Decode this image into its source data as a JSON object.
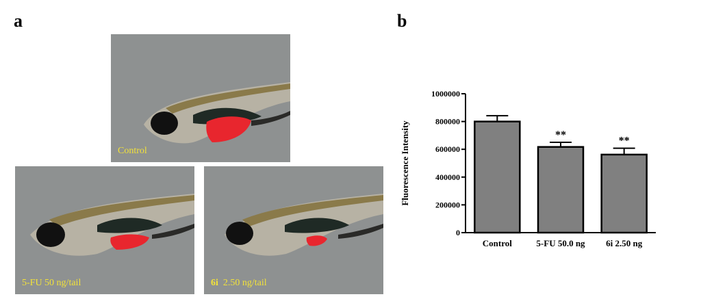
{
  "panels": {
    "a": "a",
    "b": "b"
  },
  "images": {
    "control": {
      "label": "Control"
    },
    "fu": {
      "label": "5-FU  50 ng/tail"
    },
    "sixi": {
      "label_bold": "6i",
      "label_rest": "2.50 ng/tail"
    }
  },
  "chart_data": {
    "type": "bar",
    "ylabel": "Fluorescence Intensity",
    "xlabel": "",
    "categories": [
      "Control",
      "5-FU 50.0 ng",
      "6i 2.50 ng"
    ],
    "values": [
      800000,
      617000,
      562000
    ],
    "errors": [
      42000,
      33000,
      46000
    ],
    "annotations": [
      "",
      "**",
      "**"
    ],
    "ylim": [
      0,
      1000000
    ],
    "yticks": [
      "0",
      "200000",
      "400000",
      "600000",
      "800000",
      "1000000"
    ],
    "ytick_values": [
      0,
      200000,
      400000,
      600000,
      800000,
      1000000
    ],
    "bar_color": "#808080",
    "grid": false
  }
}
